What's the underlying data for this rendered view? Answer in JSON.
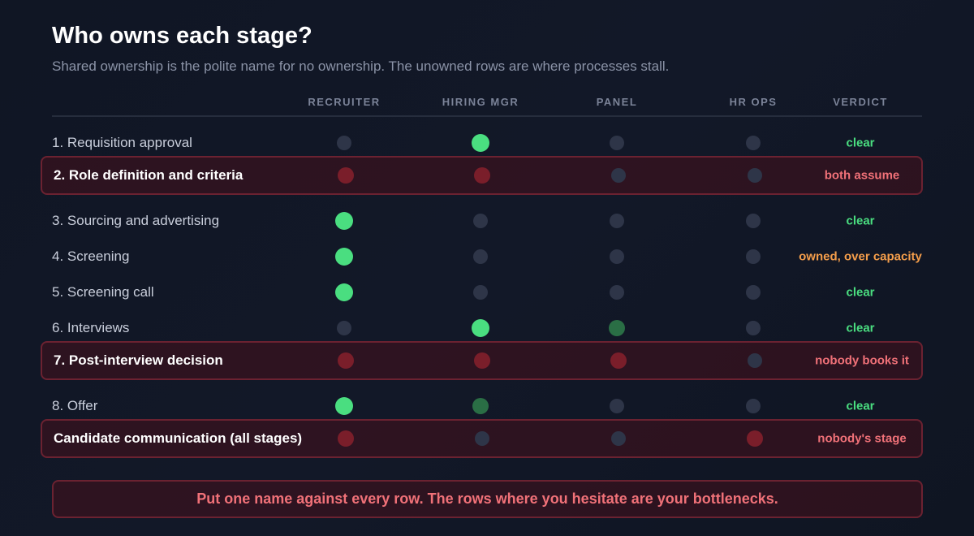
{
  "title": "Who owns each stage?",
  "subtitle": "Shared ownership is the polite name for no ownership. The unowned rows are where processes stall.",
  "columns": [
    "RECRUITER",
    "HIRING MGR",
    "PANEL",
    "HR OPS",
    "VERDICT"
  ],
  "rows": [
    {
      "label": "1. Requisition approval",
      "flagged": false,
      "cells": [
        "none",
        "on",
        "none",
        "none"
      ],
      "verdict": "clear",
      "verdict_status": "clear"
    },
    {
      "label": "2. Role definition and criteria",
      "flagged": true,
      "cells": [
        "conflict",
        "conflict",
        "none",
        "none"
      ],
      "verdict": "both assume",
      "verdict_status": "bad"
    },
    {
      "label": "3. Sourcing and advertising",
      "flagged": false,
      "cells": [
        "on",
        "none",
        "none",
        "none"
      ],
      "verdict": "clear",
      "verdict_status": "clear"
    },
    {
      "label": "4. Screening",
      "flagged": false,
      "cells": [
        "on",
        "none",
        "none",
        "none"
      ],
      "verdict": "owned, over capacity",
      "verdict_status": "warn"
    },
    {
      "label": "5. Screening call",
      "flagged": false,
      "cells": [
        "on",
        "none",
        "none",
        "none"
      ],
      "verdict": "clear",
      "verdict_status": "clear"
    },
    {
      "label": "6. Interviews",
      "flagged": false,
      "cells": [
        "none",
        "on",
        "partial",
        "none"
      ],
      "verdict": "clear",
      "verdict_status": "clear"
    },
    {
      "label": "7. Post-interview decision",
      "flagged": true,
      "cells": [
        "conflict",
        "conflict",
        "conflict",
        "none"
      ],
      "verdict": "nobody books it",
      "verdict_status": "bad"
    },
    {
      "label": "8. Offer",
      "flagged": false,
      "cells": [
        "on",
        "partial",
        "none",
        "none"
      ],
      "verdict": "clear",
      "verdict_status": "clear"
    },
    {
      "label": "Candidate communication (all stages)",
      "flagged": true,
      "cells": [
        "conflict",
        "none",
        "none",
        "conflict"
      ],
      "verdict": "nobody's stage",
      "verdict_status": "bad"
    }
  ],
  "callout": "Put one name against every row. The rows where you hesitate are your bottlenecks.",
  "colors": {
    "owned": "#4ade80",
    "partial": "#2a6e45",
    "conflict": "#7a1e2a",
    "empty": "#2e3548",
    "bad_text": "#f07178",
    "warn_text": "#f59e4b"
  }
}
